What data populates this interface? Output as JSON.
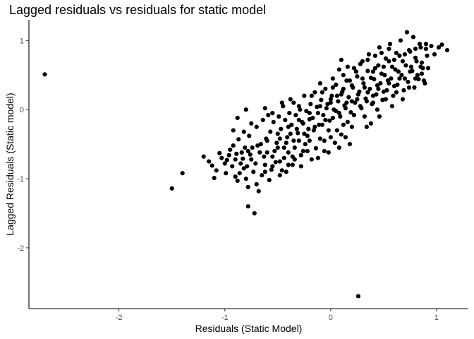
{
  "chart_data": {
    "type": "scatter",
    "title": "Lagged residuals vs residuals for static model",
    "xlabel": "Residuals (Static Model)",
    "ylabel": "Lagged Residuals (Static model)",
    "xlim": [
      -2.85,
      1.3
    ],
    "ylim": [
      -2.88,
      1.3
    ],
    "x_ticks": [
      -2,
      -1,
      0,
      1
    ],
    "y_ticks": [
      1,
      0,
      -1,
      -2
    ],
    "x_tick_labels": [
      "-2",
      "-1",
      "0",
      "1"
    ],
    "y_tick_labels": [
      "1",
      "0",
      "-1",
      "-2"
    ],
    "grid": false,
    "legend": "none",
    "point_color": "#000000",
    "points": [
      [
        -2.7,
        0.51
      ],
      [
        -1.5,
        -1.14
      ],
      [
        -1.4,
        -0.92
      ],
      [
        -0.78,
        -1.4
      ],
      [
        -0.72,
        -1.5
      ],
      [
        0.26,
        -2.7
      ],
      [
        -1.2,
        -0.68
      ],
      [
        -1.12,
        -0.81
      ],
      [
        -1.1,
        -0.99
      ],
      [
        -1.05,
        -0.63
      ],
      [
        -1.0,
        -0.78
      ],
      [
        -0.98,
        -0.73
      ],
      [
        -0.96,
        -0.66
      ],
      [
        -0.92,
        -0.52
      ],
      [
        -0.9,
        -0.72
      ],
      [
        -0.9,
        -0.97
      ],
      [
        -0.88,
        -1.03
      ],
      [
        -0.85,
        -0.78
      ],
      [
        -0.82,
        -0.85
      ],
      [
        -0.8,
        -1.0
      ],
      [
        -0.78,
        -1.12
      ],
      [
        -0.78,
        -0.6
      ],
      [
        -0.75,
        -0.72
      ],
      [
        -0.73,
        -0.9
      ],
      [
        -0.7,
        -1.08
      ],
      [
        -0.68,
        -1.18
      ],
      [
        -0.66,
        -0.5
      ],
      [
        -0.65,
        -0.95
      ],
      [
        -0.62,
        -0.8
      ],
      [
        -0.6,
        -0.62
      ],
      [
        -0.58,
        -1.02
      ],
      [
        -0.56,
        -0.87
      ],
      [
        -0.55,
        -0.68
      ],
      [
        -0.52,
        -0.76
      ],
      [
        -0.5,
        -0.55
      ],
      [
        -0.48,
        -0.42
      ],
      [
        -0.46,
        -0.88
      ],
      [
        -0.44,
        -0.7
      ],
      [
        -0.42,
        -0.48
      ],
      [
        -0.4,
        -0.62
      ],
      [
        -0.38,
        -0.35
      ],
      [
        -0.36,
        -0.8
      ],
      [
        -0.34,
        -0.55
      ],
      [
        -0.32,
        -0.28
      ],
      [
        -0.3,
        -0.45
      ],
      [
        -0.28,
        -0.66
      ],
      [
        -0.26,
        -0.2
      ],
      [
        -0.24,
        -0.5
      ],
      [
        -0.22,
        -0.38
      ],
      [
        -0.2,
        -0.14
      ],
      [
        -0.18,
        -0.72
      ],
      [
        -0.16,
        -0.3
      ],
      [
        -0.14,
        -0.56
      ],
      [
        -0.12,
        -0.05
      ],
      [
        -0.1,
        -0.42
      ],
      [
        -0.08,
        -0.22
      ],
      [
        -0.06,
        -0.6
      ],
      [
        -0.04,
        0.02
      ],
      [
        -0.02,
        -0.3
      ],
      [
        0.0,
        0.1
      ],
      [
        0.02,
        -0.12
      ],
      [
        0.04,
        -0.48
      ],
      [
        0.06,
        0.2
      ],
      [
        0.08,
        -0.05
      ],
      [
        0.1,
        -0.36
      ],
      [
        0.12,
        0.3
      ],
      [
        0.14,
        0.02
      ],
      [
        0.16,
        -0.18
      ],
      [
        0.18,
        0.42
      ],
      [
        0.2,
        0.12
      ],
      [
        0.22,
        -0.08
      ],
      [
        0.24,
        0.55
      ],
      [
        0.26,
        0.22
      ],
      [
        0.28,
        0.05
      ],
      [
        0.3,
        0.7
      ],
      [
        0.32,
        0.32
      ],
      [
        0.34,
        0.12
      ],
      [
        0.36,
        0.8
      ],
      [
        0.38,
        0.46
      ],
      [
        0.4,
        0.2
      ],
      [
        0.42,
        0.6
      ],
      [
        0.44,
        0.35
      ],
      [
        0.46,
        0.9
      ],
      [
        0.48,
        0.52
      ],
      [
        0.5,
        0.26
      ],
      [
        0.52,
        0.74
      ],
      [
        0.54,
        0.42
      ],
      [
        0.56,
        0.95
      ],
      [
        0.58,
        0.62
      ],
      [
        0.6,
        0.34
      ],
      [
        0.62,
        0.82
      ],
      [
        0.64,
        0.55
      ],
      [
        0.66,
        1.0
      ],
      [
        0.68,
        0.7
      ],
      [
        0.7,
        0.45
      ],
      [
        0.72,
        1.12
      ],
      [
        0.74,
        0.86
      ],
      [
        0.76,
        0.62
      ],
      [
        0.78,
        1.05
      ],
      [
        0.8,
        0.75
      ],
      [
        0.82,
        0.5
      ],
      [
        0.84,
        0.95
      ],
      [
        0.86,
        0.68
      ],
      [
        0.88,
        0.42
      ],
      [
        0.9,
        0.88
      ],
      [
        0.92,
        0.6
      ],
      [
        0.95,
        0.92
      ],
      [
        0.98,
        0.8
      ],
      [
        1.02,
        0.9
      ],
      [
        1.05,
        0.94
      ],
      [
        1.1,
        0.86
      ],
      [
        -0.95,
        -0.58
      ],
      [
        -0.87,
        -0.43
      ],
      [
        -0.84,
        -0.62
      ],
      [
        -0.77,
        -0.38
      ],
      [
        -0.74,
        -0.55
      ],
      [
        -0.7,
        -0.25
      ],
      [
        -0.67,
        -0.62
      ],
      [
        -0.64,
        -0.15
      ],
      [
        -0.61,
        -0.42
      ],
      [
        -0.59,
        -0.08
      ],
      [
        -0.57,
        -0.32
      ],
      [
        -0.54,
        -0.18
      ],
      [
        -0.51,
        -0.48
      ],
      [
        -0.49,
        -0.1
      ],
      [
        -0.47,
        -0.28
      ],
      [
        -0.45,
        0.05
      ],
      [
        -0.43,
        -0.15
      ],
      [
        -0.41,
        -0.4
      ],
      [
        -0.39,
        -0.05
      ],
      [
        -0.37,
        -0.22
      ],
      [
        -0.35,
        0.1
      ],
      [
        -0.33,
        -0.08
      ],
      [
        -0.31,
        -0.34
      ],
      [
        -0.29,
        0.0
      ],
      [
        -0.27,
        -0.18
      ],
      [
        -0.25,
        0.2
      ],
      [
        -0.23,
        -0.02
      ],
      [
        -0.21,
        -0.28
      ],
      [
        -0.19,
        0.08
      ],
      [
        -0.17,
        -0.12
      ],
      [
        -0.15,
        0.25
      ],
      [
        -0.13,
        0.04
      ],
      [
        -0.11,
        -0.22
      ],
      [
        -0.09,
        0.14
      ],
      [
        -0.07,
        -0.08
      ],
      [
        -0.05,
        0.3
      ],
      [
        -0.03,
        0.08
      ],
      [
        -0.01,
        -0.16
      ],
      [
        0.01,
        0.2
      ],
      [
        0.03,
        0.0
      ],
      [
        0.05,
        0.36
      ],
      [
        0.07,
        0.12
      ],
      [
        0.09,
        -0.1
      ],
      [
        0.11,
        0.26
      ],
      [
        0.13,
        0.06
      ],
      [
        0.15,
        0.42
      ],
      [
        0.17,
        0.18
      ],
      [
        0.19,
        -0.04
      ],
      [
        0.21,
        0.32
      ],
      [
        0.23,
        0.1
      ],
      [
        0.25,
        0.48
      ],
      [
        0.27,
        0.26
      ],
      [
        0.29,
        0.02
      ],
      [
        0.31,
        0.38
      ],
      [
        0.33,
        0.16
      ],
      [
        0.35,
        0.56
      ],
      [
        0.37,
        0.3
      ],
      [
        0.39,
        0.08
      ],
      [
        0.41,
        0.44
      ],
      [
        0.43,
        0.22
      ],
      [
        0.45,
        0.64
      ],
      [
        0.47,
        0.38
      ],
      [
        0.49,
        0.14
      ],
      [
        0.51,
        0.5
      ],
      [
        0.53,
        0.28
      ],
      [
        0.55,
        0.7
      ],
      [
        0.57,
        0.45
      ],
      [
        0.59,
        0.2
      ],
      [
        0.61,
        0.58
      ],
      [
        0.63,
        0.36
      ],
      [
        0.65,
        0.78
      ],
      [
        0.67,
        0.5
      ],
      [
        0.69,
        0.28
      ],
      [
        0.71,
        0.64
      ],
      [
        0.73,
        0.4
      ],
      [
        0.75,
        0.84
      ],
      [
        0.77,
        0.56
      ],
      [
        0.79,
        0.32
      ],
      [
        0.81,
        0.7
      ],
      [
        0.83,
        0.44
      ],
      [
        0.85,
        0.9
      ],
      [
        0.87,
        0.6
      ],
      [
        0.89,
        0.38
      ],
      [
        0.91,
        0.78
      ],
      [
        -1.15,
        -0.75
      ],
      [
        -1.08,
        -0.88
      ],
      [
        -1.03,
        -0.7
      ],
      [
        -0.99,
        -0.92
      ],
      [
        -0.93,
        -0.82
      ],
      [
        -0.89,
        -0.64
      ],
      [
        -0.86,
        -0.92
      ],
      [
        -0.83,
        -0.71
      ],
      [
        -0.81,
        -0.55
      ],
      [
        -0.79,
        -0.82
      ],
      [
        -0.76,
        -0.65
      ],
      [
        -0.71,
        -0.78
      ],
      [
        -0.69,
        -0.52
      ],
      [
        -0.63,
        -0.68
      ],
      [
        -0.6,
        -0.45
      ],
      [
        -0.53,
        -0.6
      ],
      [
        -0.5,
        -0.35
      ],
      [
        -0.44,
        -0.55
      ],
      [
        -0.4,
        -0.25
      ],
      [
        -0.35,
        -0.45
      ],
      [
        -0.3,
        -0.15
      ],
      [
        -0.25,
        -0.35
      ],
      [
        -0.2,
        -0.05
      ],
      [
        -0.15,
        -0.25
      ],
      [
        -0.1,
        0.05
      ],
      [
        -0.05,
        -0.15
      ],
      [
        0.0,
        0.15
      ],
      [
        0.05,
        -0.02
      ],
      [
        0.1,
        0.22
      ],
      [
        0.15,
        0.1
      ],
      [
        0.2,
        0.35
      ],
      [
        0.25,
        0.15
      ],
      [
        0.3,
        0.45
      ],
      [
        0.35,
        0.25
      ],
      [
        0.4,
        0.55
      ],
      [
        0.45,
        0.3
      ],
      [
        0.5,
        0.62
      ],
      [
        0.55,
        0.38
      ],
      [
        0.6,
        0.72
      ],
      [
        0.65,
        0.45
      ],
      [
        0.7,
        0.8
      ],
      [
        0.75,
        0.55
      ],
      [
        0.8,
        0.88
      ],
      [
        0.85,
        0.62
      ],
      [
        0.9,
        0.95
      ],
      [
        -0.62,
        -0.9
      ],
      [
        -0.55,
        -0.82
      ],
      [
        -0.48,
        -0.75
      ],
      [
        -0.42,
        -0.9
      ],
      [
        -0.36,
        -0.68
      ],
      [
        -0.28,
        -0.82
      ],
      [
        -0.22,
        -0.6
      ],
      [
        -0.12,
        -0.7
      ],
      [
        -0.02,
        -0.62
      ],
      [
        0.08,
        -0.55
      ],
      [
        0.14,
        -0.4
      ],
      [
        0.2,
        -0.25
      ],
      [
        0.32,
        -0.1
      ],
      [
        0.38,
        -0.2
      ],
      [
        0.44,
        0.0
      ],
      [
        -0.18,
        0.2
      ],
      [
        -0.08,
        0.25
      ],
      [
        0.02,
        0.32
      ],
      [
        0.12,
        0.5
      ],
      [
        0.22,
        0.6
      ],
      [
        0.28,
        0.66
      ],
      [
        0.35,
        0.72
      ],
      [
        0.42,
        0.78
      ],
      [
        0.48,
        0.82
      ],
      [
        0.55,
        0.88
      ],
      [
        -0.46,
        0.1
      ],
      [
        -0.38,
        0.15
      ],
      [
        -0.3,
        0.05
      ],
      [
        -0.62,
        0.02
      ],
      [
        -0.55,
        -0.05
      ],
      [
        -0.75,
        -0.2
      ],
      [
        -0.82,
        -0.32
      ],
      [
        -0.88,
        -0.12
      ],
      [
        -0.8,
        0.0
      ],
      [
        -0.92,
        -0.3
      ],
      [
        0.58,
        0.05
      ],
      [
        0.52,
        0.15
      ],
      [
        0.46,
        -0.1
      ],
      [
        0.4,
        0.1
      ],
      [
        0.34,
        -0.25
      ],
      [
        0.62,
        0.25
      ],
      [
        0.68,
        0.15
      ],
      [
        0.74,
        0.32
      ],
      [
        0.8,
        0.45
      ],
      [
        0.86,
        0.52
      ],
      [
        0.0,
        -0.4
      ],
      [
        -0.06,
        -0.45
      ],
      [
        0.06,
        -0.3
      ],
      [
        0.12,
        -0.22
      ],
      [
        0.18,
        -0.5
      ],
      [
        -0.1,
        0.38
      ],
      [
        0.02,
        0.45
      ],
      [
        0.08,
        0.58
      ],
      [
        0.16,
        0.62
      ],
      [
        0.1,
        0.72
      ],
      [
        -0.2,
        -0.45
      ],
      [
        -0.26,
        -0.6
      ],
      [
        -0.34,
        -0.72
      ],
      [
        -0.4,
        -0.8
      ],
      [
        -0.48,
        -0.95
      ]
    ]
  }
}
